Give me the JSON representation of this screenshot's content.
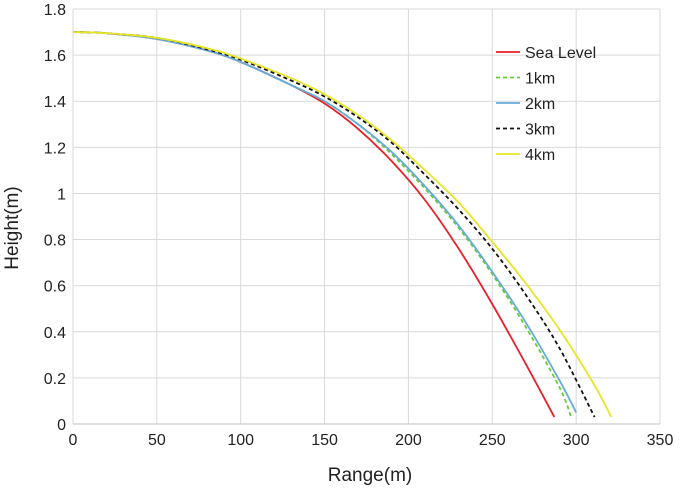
{
  "chart_data": {
    "type": "line",
    "title": "",
    "xlabel": "Range(m)",
    "ylabel": "Height(m)",
    "xlim": [
      0,
      350
    ],
    "ylim": [
      0,
      1.8
    ],
    "xticks": [
      0,
      50,
      100,
      150,
      200,
      250,
      300,
      350
    ],
    "yticks": [
      0,
      0.2,
      0.4,
      0.6,
      0.8,
      1,
      1.2,
      1.4,
      1.6,
      1.8
    ],
    "grid": true,
    "legend_position": "top-right",
    "series": [
      {
        "name": "Sea Level",
        "color": "#e8202a",
        "dash": "solid",
        "x": [
          0,
          20,
          50,
          80,
          100,
          130,
          150,
          170,
          190,
          210,
          230,
          250,
          270,
          287
        ],
        "y": [
          1.7,
          1.695,
          1.67,
          1.62,
          1.57,
          1.47,
          1.39,
          1.28,
          1.14,
          0.97,
          0.76,
          0.52,
          0.26,
          0.03
        ]
      },
      {
        "name": "1km",
        "color": "#66cc33",
        "dash": "dashed",
        "x": [
          0,
          20,
          50,
          80,
          100,
          130,
          150,
          170,
          190,
          210,
          230,
          250,
          270,
          290,
          297
        ],
        "y": [
          1.7,
          1.695,
          1.67,
          1.62,
          1.57,
          1.47,
          1.4,
          1.3,
          1.17,
          1.02,
          0.85,
          0.65,
          0.42,
          0.16,
          0.03
        ]
      },
      {
        "name": "2km",
        "color": "#66aadd",
        "dash": "solid",
        "x": [
          0,
          20,
          50,
          80,
          100,
          130,
          150,
          170,
          190,
          210,
          230,
          250,
          270,
          290,
          300
        ],
        "y": [
          1.7,
          1.695,
          1.67,
          1.62,
          1.57,
          1.47,
          1.4,
          1.3,
          1.18,
          1.03,
          0.86,
          0.66,
          0.44,
          0.19,
          0.05
        ]
      },
      {
        "name": "3km",
        "color": "#111111",
        "dash": "dashed",
        "x": [
          0,
          20,
          50,
          80,
          100,
          130,
          150,
          170,
          190,
          210,
          230,
          250,
          270,
          290,
          311
        ],
        "y": [
          1.7,
          1.695,
          1.675,
          1.625,
          1.58,
          1.49,
          1.42,
          1.33,
          1.22,
          1.08,
          0.93,
          0.76,
          0.56,
          0.33,
          0.03
        ]
      },
      {
        "name": "4km",
        "color": "#e6e626",
        "dash": "solid",
        "x": [
          0,
          20,
          50,
          80,
          100,
          130,
          150,
          170,
          190,
          210,
          230,
          250,
          270,
          290,
          310,
          321
        ],
        "y": [
          1.7,
          1.695,
          1.675,
          1.63,
          1.585,
          1.5,
          1.43,
          1.34,
          1.23,
          1.1,
          0.96,
          0.79,
          0.61,
          0.41,
          0.18,
          0.03
        ]
      }
    ]
  }
}
